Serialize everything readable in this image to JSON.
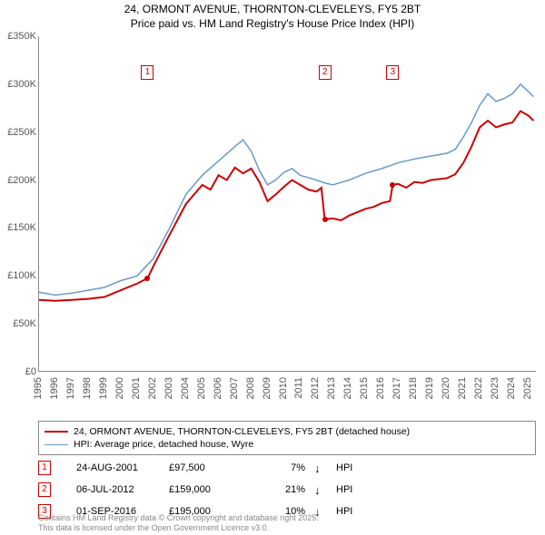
{
  "title_line1": "24, ORMONT AVENUE, THORNTON-CLEVELEYS, FY5 2BT",
  "title_line2": "Price paid vs. HM Land Registry's House Price Index (HPI)",
  "chart": {
    "type": "line",
    "background_color": "#ffffff",
    "axis_color": "#888888",
    "text_color": "#555555",
    "xlim": [
      1995,
      2025.5
    ],
    "ylim": [
      0,
      350000
    ],
    "y_ticks": [
      0,
      50000,
      100000,
      150000,
      200000,
      250000,
      300000,
      350000
    ],
    "y_tick_labels": [
      "£0",
      "£50K",
      "£100K",
      "£150K",
      "£200K",
      "£250K",
      "£300K",
      "£350K"
    ],
    "x_ticks": [
      1995,
      1996,
      1997,
      1998,
      1999,
      2000,
      2001,
      2002,
      2003,
      2004,
      2005,
      2006,
      2007,
      2008,
      2009,
      2010,
      2011,
      2012,
      2013,
      2014,
      2015,
      2016,
      2017,
      2018,
      2019,
      2020,
      2021,
      2022,
      2023,
      2024,
      2025
    ],
    "x_tick_labels": [
      "1995",
      "1996",
      "1997",
      "1998",
      "1999",
      "2000",
      "2001",
      "2002",
      "2003",
      "2004",
      "2005",
      "2006",
      "2007",
      "2008",
      "2009",
      "2010",
      "2011",
      "2012",
      "2013",
      "2014",
      "2015",
      "2016",
      "2017",
      "2018",
      "2019",
      "2020",
      "2021",
      "2022",
      "2023",
      "2024",
      "2025"
    ],
    "series": [
      {
        "name": "property",
        "color": "#cc0000",
        "width": 2,
        "data": [
          [
            1995,
            75000
          ],
          [
            1996,
            74000
          ],
          [
            1997,
            75000
          ],
          [
            1998,
            76000
          ],
          [
            1999,
            78000
          ],
          [
            2000,
            85000
          ],
          [
            2001,
            92000
          ],
          [
            2001.65,
            97500
          ],
          [
            2002,
            110000
          ],
          [
            2003,
            143000
          ],
          [
            2004,
            175000
          ],
          [
            2005,
            195000
          ],
          [
            2005.5,
            190000
          ],
          [
            2006,
            205000
          ],
          [
            2006.5,
            200000
          ],
          [
            2007,
            213000
          ],
          [
            2007.5,
            207000
          ],
          [
            2008,
            212000
          ],
          [
            2008.5,
            198000
          ],
          [
            2009,
            178000
          ],
          [
            2009.5,
            185000
          ],
          [
            2010,
            193000
          ],
          [
            2010.5,
            200000
          ],
          [
            2011,
            195000
          ],
          [
            2011.5,
            190000
          ],
          [
            2012,
            188000
          ],
          [
            2012.3,
            192000
          ],
          [
            2012.5,
            159000
          ],
          [
            2013,
            160000
          ],
          [
            2013.5,
            158000
          ],
          [
            2014,
            163000
          ],
          [
            2015,
            170000
          ],
          [
            2015.5,
            172000
          ],
          [
            2016,
            176000
          ],
          [
            2016.5,
            178000
          ],
          [
            2016.67,
            195000
          ],
          [
            2017,
            196000
          ],
          [
            2017.5,
            192000
          ],
          [
            2018,
            198000
          ],
          [
            2018.5,
            197000
          ],
          [
            2019,
            200000
          ],
          [
            2020,
            202000
          ],
          [
            2020.5,
            206000
          ],
          [
            2021,
            218000
          ],
          [
            2021.5,
            235000
          ],
          [
            2022,
            255000
          ],
          [
            2022.5,
            262000
          ],
          [
            2023,
            255000
          ],
          [
            2023.5,
            258000
          ],
          [
            2024,
            260000
          ],
          [
            2024.5,
            272000
          ],
          [
            2025,
            267000
          ],
          [
            2025.3,
            262000
          ]
        ]
      },
      {
        "name": "hpi",
        "color": "#6699cc",
        "width": 1.5,
        "data": [
          [
            1995,
            83000
          ],
          [
            1996,
            80000
          ],
          [
            1997,
            82000
          ],
          [
            1998,
            85000
          ],
          [
            1999,
            88000
          ],
          [
            2000,
            95000
          ],
          [
            2001,
            100000
          ],
          [
            2002,
            118000
          ],
          [
            2003,
            150000
          ],
          [
            2004,
            185000
          ],
          [
            2005,
            205000
          ],
          [
            2006,
            220000
          ],
          [
            2007,
            235000
          ],
          [
            2007.5,
            242000
          ],
          [
            2008,
            230000
          ],
          [
            2008.5,
            210000
          ],
          [
            2009,
            195000
          ],
          [
            2009.5,
            200000
          ],
          [
            2010,
            208000
          ],
          [
            2010.5,
            212000
          ],
          [
            2011,
            205000
          ],
          [
            2012,
            200000
          ],
          [
            2012.5,
            197000
          ],
          [
            2013,
            195000
          ],
          [
            2014,
            200000
          ],
          [
            2015,
            207000
          ],
          [
            2016,
            212000
          ],
          [
            2016.67,
            216000
          ],
          [
            2017,
            218000
          ],
          [
            2018,
            222000
          ],
          [
            2019,
            225000
          ],
          [
            2020,
            228000
          ],
          [
            2020.5,
            232000
          ],
          [
            2021,
            245000
          ],
          [
            2021.5,
            260000
          ],
          [
            2022,
            278000
          ],
          [
            2022.5,
            290000
          ],
          [
            2023,
            282000
          ],
          [
            2023.5,
            285000
          ],
          [
            2024,
            290000
          ],
          [
            2024.5,
            300000
          ],
          [
            2025,
            292000
          ],
          [
            2025.3,
            287000
          ]
        ]
      }
    ],
    "sale_points": [
      {
        "x": 2001.65,
        "y": 97500,
        "color": "#cc0000"
      },
      {
        "x": 2012.52,
        "y": 159000,
        "color": "#cc0000"
      },
      {
        "x": 2016.67,
        "y": 195000,
        "color": "#cc0000"
      }
    ],
    "markers": [
      {
        "label": "1",
        "x": 2001.65,
        "y_on_chart": 320000,
        "color": "#cc0000"
      },
      {
        "label": "2",
        "x": 2012.52,
        "y_on_chart": 320000,
        "color": "#cc0000"
      },
      {
        "label": "3",
        "x": 2016.67,
        "y_on_chart": 320000,
        "color": "#cc0000"
      }
    ]
  },
  "legend": {
    "items": [
      {
        "color": "#cc0000",
        "width": 2,
        "label": "24, ORMONT AVENUE, THORNTON-CLEVELEYS, FY5 2BT (detached house)"
      },
      {
        "color": "#6699cc",
        "width": 1.5,
        "label": "HPI: Average price, detached house, Wyre"
      }
    ]
  },
  "sales": [
    {
      "num": "1",
      "color": "#cc0000",
      "date": "24-AUG-2001",
      "price": "£97,500",
      "pct": "7%",
      "arrow": "↓",
      "hpi": "HPI"
    },
    {
      "num": "2",
      "color": "#cc0000",
      "date": "06-JUL-2012",
      "price": "£159,000",
      "pct": "21%",
      "arrow": "↓",
      "hpi": "HPI"
    },
    {
      "num": "3",
      "color": "#cc0000",
      "date": "01-SEP-2016",
      "price": "£195,000",
      "pct": "10%",
      "arrow": "↓",
      "hpi": "HPI"
    }
  ],
  "footer_line1": "Contains HM Land Registry data © Crown copyright and database right 2025.",
  "footer_line2": "This data is licensed under the Open Government Licence v3.0."
}
